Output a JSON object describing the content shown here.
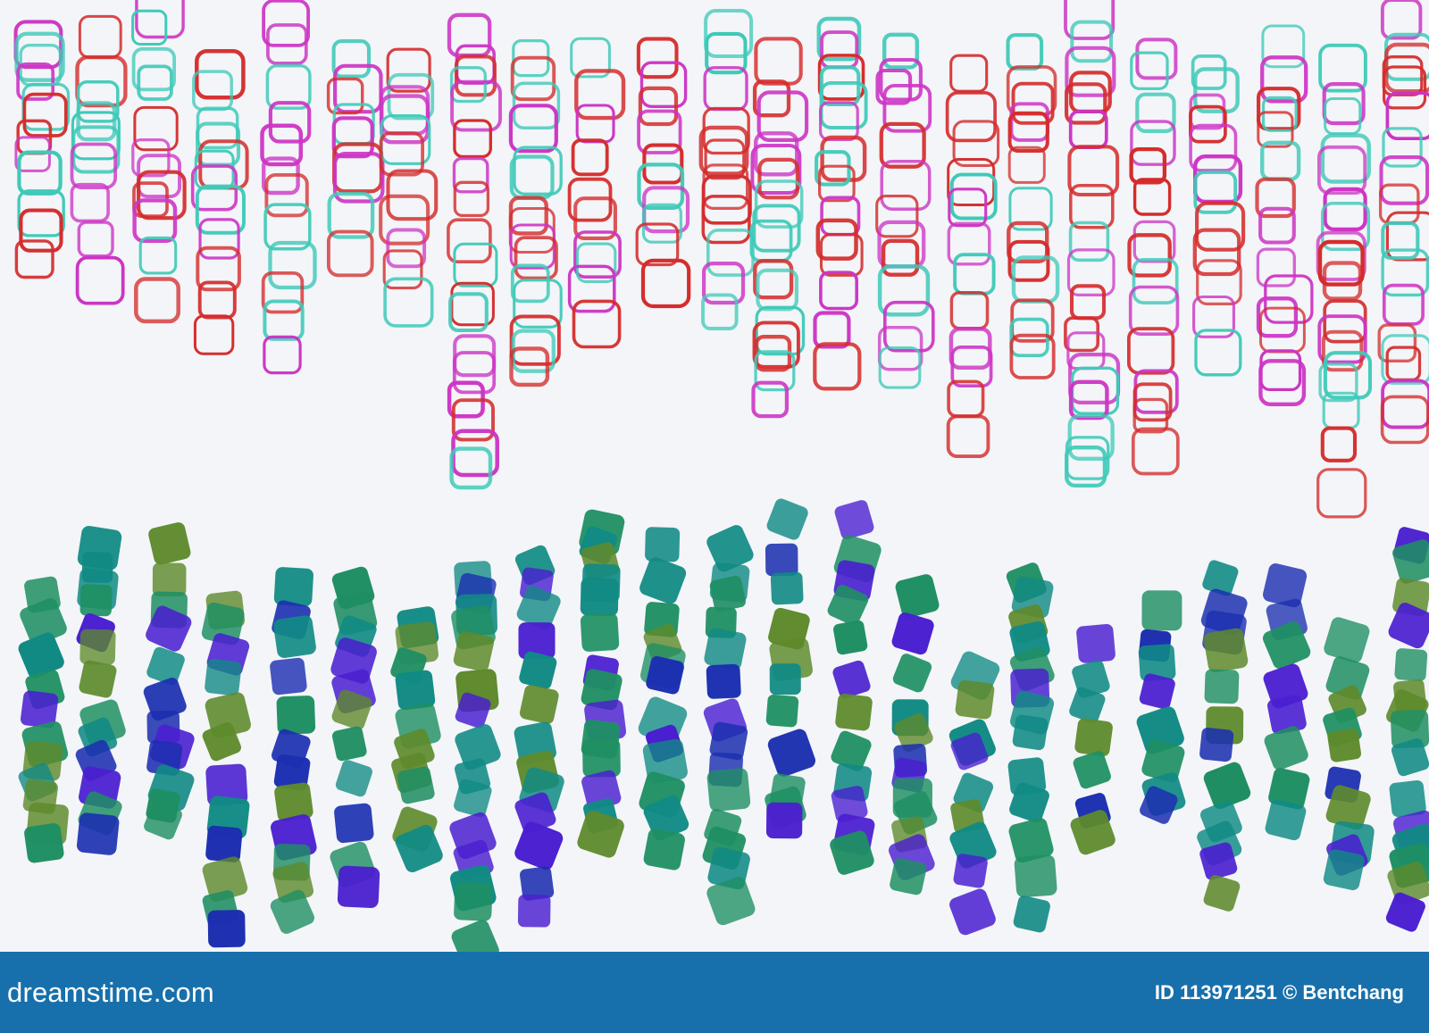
{
  "image": {
    "subject": "abstract rounded squares pattern",
    "colors": {
      "background": "#f3f5f8",
      "outline_red": "#d42b2b",
      "outline_teal": "#3fc9b8",
      "outline_magenta": "#cc34c4",
      "fill_blue": "#1c2fb0",
      "fill_indigo": "#4a1fd0",
      "fill_teal": "#118a84",
      "fill_green": "#1f8f63",
      "fill_olive": "#5e8a2c",
      "footer_background": "#1770ab",
      "footer_text": "#ffffff"
    }
  },
  "footer": {
    "site_name": "dreamstime.com",
    "credit": "ID 113971251 © Bentchang"
  }
}
